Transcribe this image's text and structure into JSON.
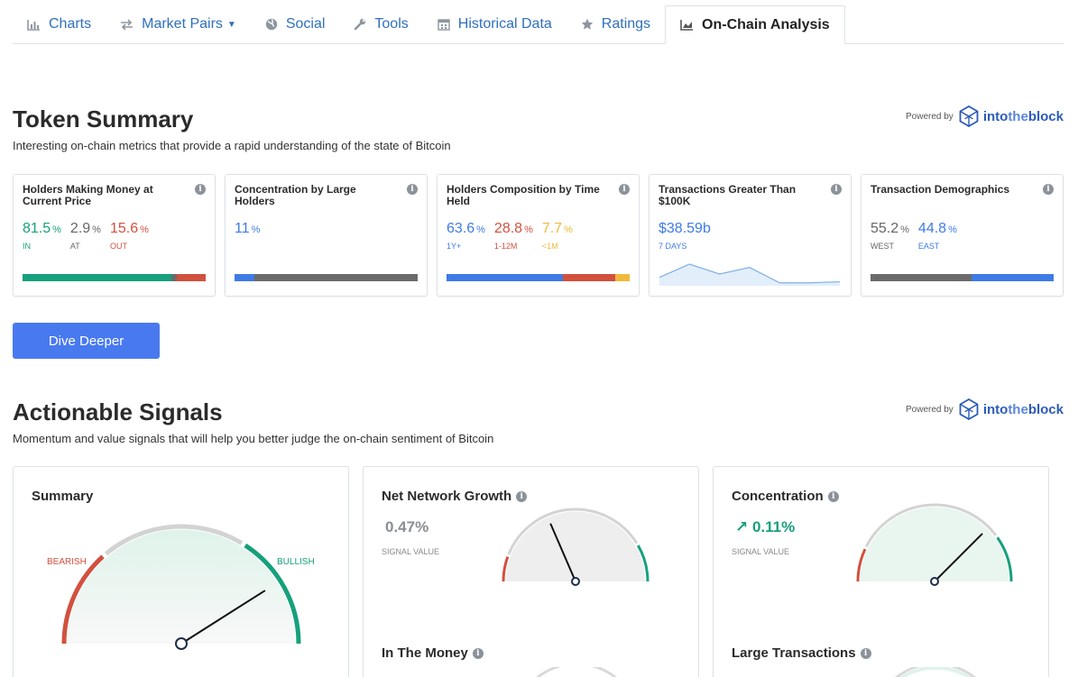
{
  "tabs": [
    {
      "label": "Charts",
      "icon": "bar-chart-icon"
    },
    {
      "label": "Market Pairs",
      "icon": "exchange-arrows-icon"
    },
    {
      "label": "Social",
      "icon": "globe-icon"
    },
    {
      "label": "Tools",
      "icon": "wrench-icon"
    },
    {
      "label": "Historical Data",
      "icon": "calendar-icon"
    },
    {
      "label": "Ratings",
      "icon": "star-icon"
    },
    {
      "label": "On-Chain Analysis",
      "icon": "area-chart-icon",
      "active": true
    }
  ],
  "powered": {
    "prefix": "Powered by",
    "brand_a": "into",
    "brand_b": "the",
    "brand_c": "block"
  },
  "token_summary": {
    "title": "Token Summary",
    "subtitle": "Interesting on-chain metrics that provide a rapid understanding of the state of Bitcoin",
    "cards": [
      {
        "title": "Holders Making Money at Current Price",
        "values": [
          {
            "num": "81.5",
            "pct": "%",
            "lbl": "IN"
          },
          {
            "num": "2.9",
            "pct": "%",
            "lbl": "AT"
          },
          {
            "num": "15.6",
            "pct": "%",
            "lbl": "OUT"
          }
        ],
        "bar": [
          0.815,
          0.029,
          0.156
        ]
      },
      {
        "title": "Concentration by Large Holders",
        "values": [
          {
            "num": "11",
            "pct": "%"
          }
        ],
        "bar": [
          0.11,
          0.89
        ]
      },
      {
        "title": "Holders Composition by Time Held",
        "values": [
          {
            "num": "63.6",
            "pct": "%",
            "lbl": "1Y+"
          },
          {
            "num": "28.8",
            "pct": "%",
            "lbl": "1-12M"
          },
          {
            "num": "7.7",
            "pct": "%",
            "lbl": "<1M"
          }
        ],
        "bar": [
          0.636,
          0.288,
          0.077
        ]
      },
      {
        "title": "Transactions Greater Than $100K",
        "values": [
          {
            "num": "$38.59b",
            "lbl": "7 DAYS"
          }
        ],
        "spark": [
          6,
          18,
          9,
          15,
          1,
          1,
          2
        ]
      },
      {
        "title": "Transaction Demographics",
        "values": [
          {
            "num": "55.2",
            "pct": "%",
            "lbl": "WEST"
          },
          {
            "num": "44.8",
            "pct": "%",
            "lbl": "EAST"
          }
        ],
        "bar": [
          0.552,
          0.448
        ]
      }
    ],
    "button": "Dive Deeper"
  },
  "actionable": {
    "title": "Actionable Signals",
    "subtitle": "Momentum and value signals that will help you better judge the on-chain sentiment of Bitcoin",
    "summary": {
      "title": "Summary",
      "bearish": "BEARISH",
      "bullish": "BULLISH",
      "needle": 0.82
    },
    "net_network": {
      "title": "Net Network Growth",
      "value": "0.47%",
      "label": "SIGNAL VALUE",
      "needle": 0.37
    },
    "concentration": {
      "title": "Concentration",
      "value": "0.11%",
      "label": "SIGNAL VALUE",
      "needle": 0.75
    },
    "in_the_money": {
      "title": "In The Money"
    },
    "large_tx": {
      "title": "Large Transactions"
    }
  },
  "colors": {
    "green": "#16a07c",
    "red": "#d2503e",
    "blue": "#3e7be6",
    "gray": "#6b6b6b",
    "orange": "#f1b93a",
    "accent": "#4879ef"
  }
}
